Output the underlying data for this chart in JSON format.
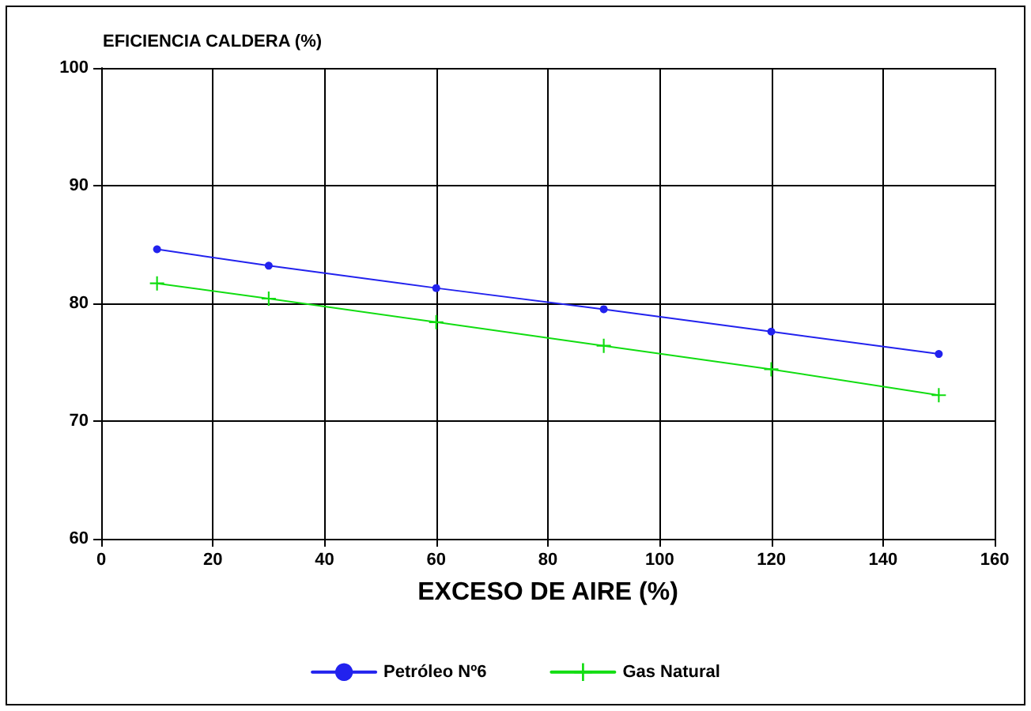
{
  "chart_data": {
    "type": "line",
    "title": "EFICIENCIA CALDERA (%)",
    "xlabel": "EXCESO DE AIRE (%)",
    "x": [
      10,
      30,
      60,
      90,
      120,
      150
    ],
    "series": [
      {
        "name": "Petróleo Nº6",
        "color": "#2222ee",
        "marker": "circle",
        "values": [
          84.6,
          83.2,
          81.3,
          79.5,
          77.6,
          75.7
        ]
      },
      {
        "name": "Gas Natural",
        "color": "#11dd11",
        "marker": "cross",
        "values": [
          81.7,
          80.4,
          78.4,
          76.4,
          74.4,
          72.2
        ]
      }
    ],
    "xlim": [
      0,
      160
    ],
    "xticks": [
      0,
      20,
      40,
      60,
      80,
      100,
      120,
      140,
      160
    ],
    "ylim": [
      60,
      100
    ],
    "yticks": [
      60,
      70,
      80,
      90,
      100
    ],
    "grid": true,
    "legend": "bottom",
    "line_style": "solid"
  }
}
